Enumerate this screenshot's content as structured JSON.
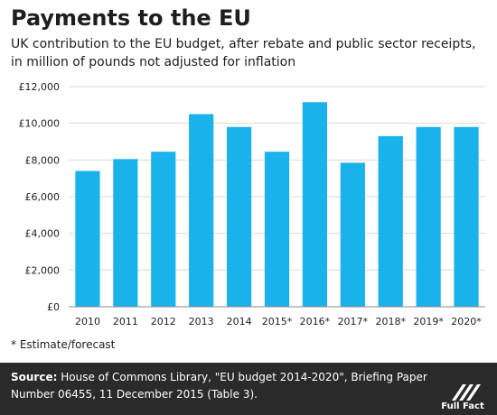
{
  "title": "Payments to the EU",
  "subtitle": "UK contribution to the EU budget, after rebate and public sector receipts, in million of pounds not adjusted for inflation",
  "footnote": "* Estimate/forecast",
  "source_label": "Source:",
  "source_text": "House of Commons Library, \"EU budget 2014-2020\", Briefing Paper Number 06455, 11 December 2015 (Table 3).",
  "logo_text": "Full Fact",
  "colors": {
    "bar": "#1ab2ea",
    "footer": "#2a2a2a",
    "axis": "#888888",
    "grid": "#d9d9d9"
  },
  "chart_data": {
    "type": "bar",
    "categories": [
      "2010",
      "2011",
      "2012",
      "2013",
      "2014",
      "2015*",
      "2016*",
      "2017*",
      "2018*",
      "2019*",
      "2020*"
    ],
    "values": [
      7400,
      8050,
      8450,
      10500,
      9800,
      8450,
      11150,
      7850,
      9300,
      9800,
      9800
    ],
    "ylim": [
      0,
      12000
    ],
    "yticks": [
      0,
      2000,
      4000,
      6000,
      8000,
      10000,
      12000
    ],
    "ytick_labels": [
      "£0",
      "£2,000",
      "£4,000",
      "£6,000",
      "£8,000",
      "£10,000",
      "£12,000"
    ],
    "xlabel": "",
    "ylabel": "",
    "grid": "horizontal"
  }
}
